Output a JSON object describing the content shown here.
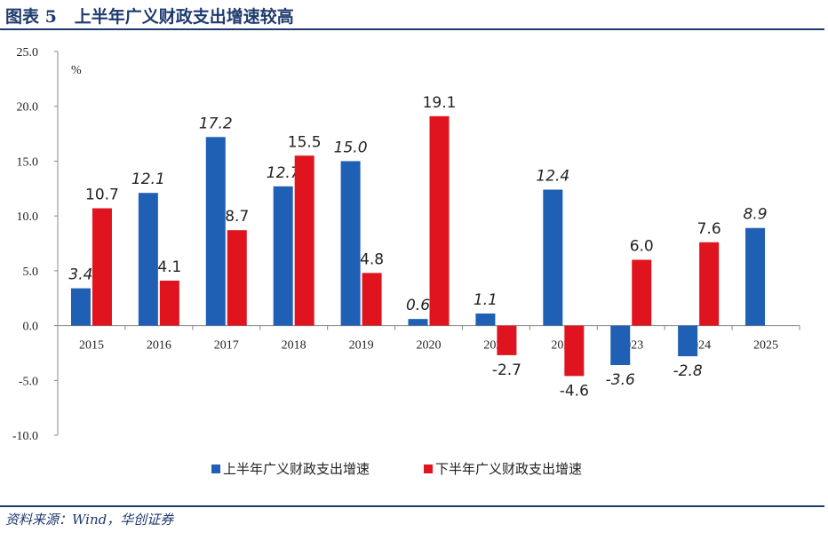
{
  "header": {
    "figure_label": "图表 5",
    "title": "上半年广义财政支出增速较高"
  },
  "footer": {
    "source": "资料来源：Wind，华创证券"
  },
  "chart_data": {
    "type": "bar",
    "unit_label": "%",
    "categories": [
      "2015",
      "2016",
      "2017",
      "2018",
      "2019",
      "2020",
      "2021",
      "2022",
      "2023",
      "2024",
      "2025"
    ],
    "ylim": [
      -10,
      25
    ],
    "yticks": [
      "25.0",
      "20.0",
      "15.0",
      "10.0",
      "5.0",
      "0.0",
      "-5.0",
      "-10.0"
    ],
    "ytick_values": [
      25,
      20,
      15,
      10,
      5,
      0,
      -5,
      -10
    ],
    "grid": false,
    "legend_position": "bottom",
    "series": [
      {
        "name": "上半年广义财政支出增速",
        "color": "#1f5fb4",
        "label_style": "italic",
        "values": [
          3.4,
          12.1,
          17.2,
          12.7,
          15.0,
          0.6,
          1.1,
          12.4,
          -3.6,
          -2.8,
          8.9
        ],
        "labels": [
          "3.4",
          "12.1",
          "17.2",
          "12.7",
          "15.0",
          "0.6",
          "1.1",
          "12.4",
          "-3.6",
          "-2.8",
          "8.9"
        ]
      },
      {
        "name": "下半年广义财政支出增速",
        "color": "#e0141e",
        "label_style": "normal",
        "values": [
          10.7,
          4.1,
          8.7,
          15.5,
          4.8,
          19.1,
          -2.7,
          -4.6,
          6.0,
          7.6,
          null
        ],
        "labels": [
          "10.7",
          "4.1",
          "8.7",
          "15.5",
          "4.8",
          "19.1",
          "-2.7",
          "-4.6",
          "6.0",
          "7.6",
          ""
        ]
      }
    ]
  }
}
